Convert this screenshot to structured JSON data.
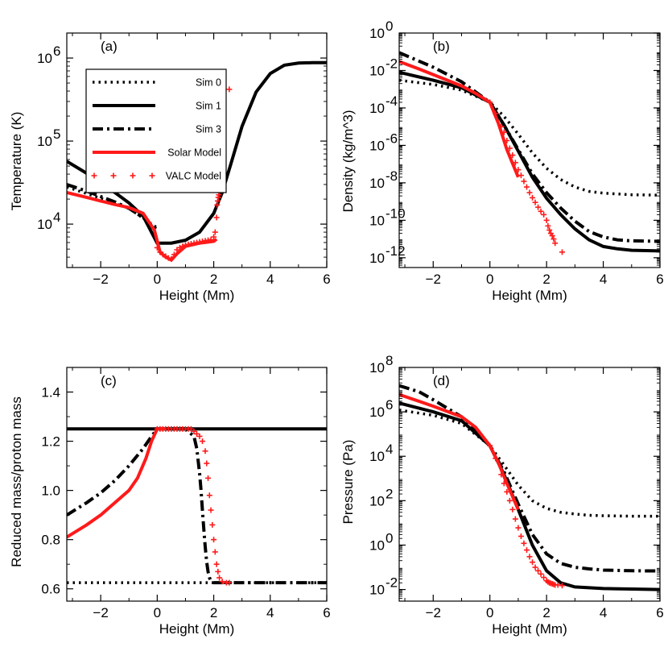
{
  "colors": {
    "sim": "#000000",
    "solar": "#ff1a1a",
    "valc": "#ff1a1a"
  },
  "legend": [
    {
      "label": "Sim 0",
      "style": "dot"
    },
    {
      "label": "Sim 1",
      "style": "solid"
    },
    {
      "label": "Sim 3",
      "style": "dashdot"
    },
    {
      "label": "Solar Model",
      "style": "solid-red"
    },
    {
      "label": "VALC Model",
      "style": "plus-red"
    }
  ],
  "chart_data": [
    {
      "type": "line",
      "label": "(a)",
      "title": "",
      "xlabel": "Height (Mm)",
      "ylabel": "Temperature (K)",
      "xlim": [
        -3.2,
        6
      ],
      "ylim": [
        3000,
        2000000
      ],
      "yscale": "log",
      "xticks": [
        -2,
        0,
        2,
        4,
        6
      ],
      "xticklabels": [
        "−2",
        "0",
        "2",
        "4",
        "6"
      ],
      "yticks": [
        10000,
        100000,
        1000000
      ],
      "yticklabels": [
        [
          "10",
          "4"
        ],
        [
          "10",
          "5"
        ],
        [
          "10",
          "6"
        ]
      ],
      "has_legend": true,
      "series": [
        {
          "name": "Sim 0",
          "style": "dot",
          "x": [
            -3.2,
            -2,
            -1,
            0
          ],
          "y": [
            28000,
            20500,
            15500,
            9000
          ]
        },
        {
          "name": "Sim 1",
          "style": "solid",
          "x": [
            -3.2,
            -2.5,
            -2,
            -1.5,
            -1,
            -0.5,
            0,
            0.5,
            1,
            1.5,
            2,
            2.3,
            2.6,
            3,
            3.5,
            4,
            4.5,
            5,
            5.5,
            6
          ],
          "y": [
            57000,
            41000,
            32000,
            24000,
            18000,
            12500,
            5900,
            5900,
            6400,
            8000,
            13500,
            24000,
            52000,
            150000,
            390000,
            650000,
            820000,
            870000,
            880000,
            880000
          ]
        },
        {
          "name": "Sim 3",
          "style": "dashdot",
          "x": [
            -3.2,
            -2.5,
            -2,
            -1.5,
            -1,
            -0.5,
            0
          ],
          "y": [
            30000,
            25000,
            21500,
            18500,
            15500,
            12000,
            8500
          ]
        },
        {
          "name": "Solar Model",
          "style": "solid-red",
          "x": [
            -3.2,
            -2.5,
            -2,
            -1.5,
            -1,
            -0.5,
            -0.1,
            0.1,
            0.3,
            0.5,
            0.7,
            1,
            1.5,
            2,
            2.1
          ],
          "y": [
            24000,
            21000,
            19000,
            17200,
            15800,
            13500,
            8500,
            4600,
            4000,
            3700,
            4400,
            5400,
            5900,
            6200,
            6600
          ]
        },
        {
          "name": "VALC Model",
          "style": "plus-red",
          "x": [
            0,
            0.1,
            0.2,
            0.3,
            0.4,
            0.5,
            0.6,
            0.7,
            0.8,
            0.9,
            1.0,
            1.1,
            1.2,
            1.3,
            1.4,
            1.5,
            1.6,
            1.7,
            1.8,
            1.9,
            2.0,
            2.05,
            2.1,
            2.12,
            2.14,
            2.16,
            2.18,
            2.2,
            2.22,
            2.24,
            2.26,
            2.3,
            2.55
          ],
          "y": [
            5200,
            4600,
            4300,
            4100,
            3900,
            3800,
            4300,
            4900,
            5200,
            5400,
            5600,
            5700,
            5800,
            5900,
            6000,
            6100,
            6200,
            6300,
            6400,
            6500,
            7000,
            8000,
            12000,
            17000,
            19000,
            21000,
            22500,
            24000,
            26000,
            30000,
            40000,
            50000,
            420000
          ]
        }
      ]
    },
    {
      "type": "line",
      "label": "(b)",
      "title": "",
      "xlabel": "Height (Mm)",
      "ylabel": "Density (kg/m^3)",
      "xlim": [
        -3.2,
        6
      ],
      "ylim": [
        3e-13,
        1
      ],
      "yscale": "log",
      "xticks": [
        -2,
        0,
        2,
        4,
        6
      ],
      "xticklabels": [
        "−2",
        "0",
        "2",
        "4",
        "6"
      ],
      "yticks": [
        1e-12,
        1e-10,
        1e-08,
        1e-06,
        0.0001,
        0.01,
        1
      ],
      "yticklabels": [
        [
          "10",
          "-12"
        ],
        [
          "10",
          "-10"
        ],
        [
          "10",
          "-8"
        ],
        [
          "10",
          "-6"
        ],
        [
          "10",
          "-4"
        ],
        [
          "10",
          "-2"
        ],
        [
          "10",
          "0"
        ]
      ],
      "has_legend": false,
      "series": [
        {
          "name": "Sim 0",
          "style": "dot",
          "x": [
            -3.2,
            -2,
            -1,
            0,
            0.5,
            1,
            1.5,
            2,
            2.5,
            3,
            3.5,
            4,
            5,
            6
          ],
          "y": [
            0.003,
            0.0018,
            0.0009,
            0.0002,
            3.5e-05,
            4e-06,
            4e-07,
            6e-08,
            1.5e-08,
            6e-09,
            3.5e-09,
            2.8e-09,
            2.3e-09,
            2.2e-09
          ]
        },
        {
          "name": "Sim 1",
          "style": "solid",
          "x": [
            -3.2,
            -2,
            -1,
            0,
            0.5,
            1,
            1.5,
            2,
            2.5,
            3,
            3.5,
            4,
            4.5,
            5,
            6
          ],
          "y": [
            0.008,
            0.003,
            0.0012,
            0.0002,
            1.2e-05,
            5e-07,
            2e-08,
            1.5e-09,
            2e-10,
            3.5e-11,
            9e-12,
            4e-12,
            3e-12,
            2.5e-12,
            2.3e-12
          ]
        },
        {
          "name": "Sim 3",
          "style": "dashdot",
          "x": [
            -3.2,
            -2,
            -1,
            0,
            0.5,
            1,
            1.5,
            2,
            2.5,
            3,
            3.5,
            4,
            4.5,
            5,
            6
          ],
          "y": [
            0.09,
            0.015,
            0.0025,
            0.0002,
            1.2e-05,
            6e-07,
            3e-08,
            3e-09,
            4.5e-10,
            9e-11,
            2.5e-11,
            1.3e-11,
            9e-12,
            8e-12,
            7.5e-12
          ]
        },
        {
          "name": "Solar Model",
          "style": "solid-red",
          "x": [
            -3.2,
            -2.5,
            -2,
            -1.5,
            -1,
            -0.5,
            0,
            0.3,
            0.6,
            1
          ],
          "y": [
            0.03,
            0.012,
            0.006,
            0.003,
            0.0015,
            0.0006,
            0.0002,
            1.5e-05,
            6e-07,
            2e-08
          ]
        },
        {
          "name": "VALC Model",
          "style": "plus-red",
          "x": [
            0,
            0.2,
            0.4,
            0.5,
            0.6,
            0.7,
            0.8,
            0.9,
            1.0,
            1.1,
            1.2,
            1.3,
            1.4,
            1.5,
            1.6,
            1.7,
            1.8,
            1.9,
            2.0,
            2.05,
            2.1,
            2.15,
            2.2,
            2.25,
            2.3,
            2.55
          ],
          "y": [
            0.0002,
            5e-05,
            1e-05,
            5e-06,
            1.8e-06,
            7e-07,
            3e-07,
            1.2e-07,
            5e-08,
            2.5e-08,
            1.2e-08,
            6e-09,
            3e-09,
            1.6e-09,
            9e-10,
            5e-10,
            3e-10,
            2e-10,
            1e-10,
            5e-11,
            3e-11,
            2e-11,
            1.5e-11,
            1e-11,
            6e-12,
            2e-12
          ]
        }
      ]
    },
    {
      "type": "line",
      "label": "(c)",
      "title": "",
      "xlabel": "Height (Mm)",
      "ylabel": "Reduced mass/proton mass",
      "xlim": [
        -3.2,
        6
      ],
      "ylim": [
        0.55,
        1.5
      ],
      "yscale": "linear",
      "xticks": [
        -2,
        0,
        2,
        4,
        6
      ],
      "xticklabels": [
        "−2",
        "0",
        "2",
        "4",
        "6"
      ],
      "yticks": [
        0.6,
        0.8,
        1.0,
        1.2,
        1.4
      ],
      "yticklabels": [
        [
          "0.6",
          ""
        ],
        [
          "0.8",
          ""
        ],
        [
          "1.0",
          ""
        ],
        [
          "1.2",
          ""
        ],
        [
          "1.4",
          ""
        ]
      ],
      "has_legend": false,
      "series": [
        {
          "name": "Sim 0",
          "style": "dot",
          "x": [
            -3.2,
            6
          ],
          "y": [
            0.625,
            0.625
          ]
        },
        {
          "name": "Sim 1",
          "style": "solid",
          "x": [
            -3.2,
            6
          ],
          "y": [
            1.25,
            1.25
          ]
        },
        {
          "name": "Sim 3",
          "style": "dashdot",
          "x": [
            -3.2,
            -2.5,
            -2,
            -1.5,
            -1,
            -0.5,
            -0.2,
            0,
            0.5,
            1,
            1.3,
            1.4,
            1.5,
            1.55,
            1.6,
            1.65,
            1.7,
            1.75,
            1.8,
            1.85,
            1.9,
            2,
            3,
            4,
            5,
            6
          ],
          "y": [
            0.9,
            0.95,
            0.99,
            1.04,
            1.1,
            1.17,
            1.22,
            1.25,
            1.25,
            1.25,
            1.22,
            1.17,
            1.07,
            1.0,
            0.92,
            0.84,
            0.77,
            0.71,
            0.67,
            0.645,
            0.632,
            0.625,
            0.625,
            0.625,
            0.625,
            0.625
          ]
        },
        {
          "name": "Solar Model",
          "style": "solid-red",
          "x": [
            -3.2,
            -2.5,
            -2,
            -1.5,
            -1,
            -0.7,
            -0.4,
            -0.2,
            0,
            0.3
          ],
          "y": [
            0.81,
            0.86,
            0.9,
            0.95,
            1.0,
            1.05,
            1.13,
            1.2,
            1.25,
            1.25
          ]
        },
        {
          "name": "VALC Model",
          "style": "plus-red",
          "x": [
            0,
            0.1,
            0.2,
            0.3,
            0.4,
            0.5,
            0.6,
            0.7,
            0.8,
            0.9,
            1.0,
            1.1,
            1.2,
            1.3,
            1.4,
            1.5,
            1.6,
            1.7,
            1.75,
            1.8,
            1.85,
            1.9,
            1.95,
            2.0,
            2.05,
            2.1,
            2.15,
            2.2,
            2.3,
            2.45,
            2.55
          ],
          "y": [
            1.25,
            1.25,
            1.25,
            1.25,
            1.25,
            1.25,
            1.25,
            1.25,
            1.25,
            1.25,
            1.25,
            1.25,
            1.25,
            1.24,
            1.23,
            1.22,
            1.2,
            1.16,
            1.11,
            1.05,
            0.98,
            0.92,
            0.86,
            0.8,
            0.75,
            0.7,
            0.67,
            0.645,
            0.63,
            0.625,
            0.625
          ]
        }
      ]
    },
    {
      "type": "line",
      "label": "(d)",
      "title": "",
      "xlabel": "Height (Mm)",
      "ylabel": "Pressure (Pa)",
      "xlim": [
        -3.2,
        6
      ],
      "ylim": [
        0.003,
        100000000.0
      ],
      "yscale": "log",
      "xticks": [
        -2,
        0,
        2,
        4,
        6
      ],
      "xticklabels": [
        "−2",
        "0",
        "2",
        "4",
        "6"
      ],
      "yticks": [
        0.01,
        1,
        100,
        10000,
        1000000,
        100000000
      ],
      "yticklabels": [
        [
          "10",
          "-2"
        ],
        [
          "10",
          "0"
        ],
        [
          "10",
          "2"
        ],
        [
          "10",
          "4"
        ],
        [
          "10",
          "6"
        ],
        [
          "10",
          "8"
        ]
      ],
      "has_legend": false,
      "series": [
        {
          "name": "Sim 0",
          "style": "dot",
          "x": [
            -3.2,
            -2,
            -1,
            0,
            0.5,
            1,
            1.5,
            2,
            2.5,
            3,
            3.5,
            4,
            5,
            6
          ],
          "y": [
            1200000,
            700000,
            300000,
            30000,
            4000,
            500,
            100,
            45,
            30,
            25,
            22,
            21,
            20,
            20
          ]
        },
        {
          "name": "Sim 1",
          "style": "solid",
          "x": [
            -3.2,
            -2,
            -1,
            0,
            0.5,
            1,
            1.5,
            2,
            2.5,
            3,
            3.5,
            4,
            5,
            6
          ],
          "y": [
            2500000,
            1000000,
            400000,
            30000,
            1500,
            40,
            1,
            0.07,
            0.02,
            0.013,
            0.012,
            0.011,
            0.0105,
            0.01
          ]
        },
        {
          "name": "Sim 3",
          "style": "dashdot",
          "x": [
            -3.2,
            -2.5,
            -2,
            -1,
            0,
            0.5,
            1,
            1.5,
            2,
            2.5,
            3,
            3.5,
            4,
            5,
            6
          ],
          "y": [
            15000000,
            8000000,
            3500000,
            600000,
            30000,
            2000,
            70,
            3,
            0.4,
            0.15,
            0.1,
            0.085,
            0.075,
            0.07,
            0.068
          ]
        },
        {
          "name": "Solar Model",
          "style": "solid-red",
          "x": [
            -3.2,
            -2.5,
            -2,
            -1,
            -0.5,
            0,
            0.3,
            0.6,
            1
          ],
          "y": [
            6000000,
            3000000,
            1800000,
            600000,
            200000,
            30000,
            5000,
            600,
            40
          ]
        },
        {
          "name": "VALC Model",
          "style": "plus-red",
          "x": [
            0,
            0.2,
            0.4,
            0.5,
            0.6,
            0.7,
            0.8,
            0.9,
            1.0,
            1.1,
            1.2,
            1.3,
            1.4,
            1.5,
            1.6,
            1.7,
            1.8,
            1.9,
            2.0,
            2.05,
            2.1,
            2.15,
            2.2,
            2.25,
            2.3,
            2.4,
            2.55
          ],
          "y": [
            30000,
            8000,
            1500,
            600,
            250,
            100,
            40,
            15,
            6,
            2.5,
            1.2,
            0.6,
            0.3,
            0.17,
            0.1,
            0.07,
            0.05,
            0.035,
            0.025,
            0.022,
            0.02,
            0.019,
            0.018,
            0.017,
            0.016,
            0.016,
            0.015
          ]
        }
      ]
    }
  ]
}
